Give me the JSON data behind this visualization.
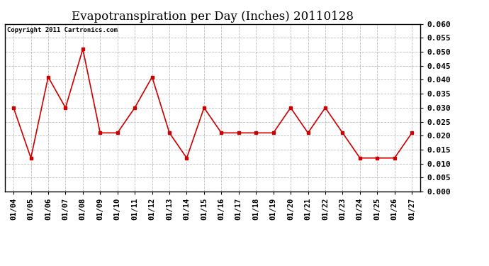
{
  "title": "Evapotranspiration per Day (Inches) 20110128",
  "copyright_text": "Copyright 2011 Cartronics.com",
  "x_labels": [
    "01/04",
    "01/05",
    "01/06",
    "01/07",
    "01/08",
    "01/09",
    "01/10",
    "01/11",
    "01/12",
    "01/13",
    "01/14",
    "01/15",
    "01/16",
    "01/17",
    "01/18",
    "01/19",
    "01/20",
    "01/21",
    "01/22",
    "01/23",
    "01/24",
    "01/25",
    "01/26",
    "01/27"
  ],
  "y_values": [
    0.03,
    0.012,
    0.041,
    0.03,
    0.051,
    0.021,
    0.021,
    0.03,
    0.041,
    0.021,
    0.012,
    0.03,
    0.021,
    0.021,
    0.021,
    0.021,
    0.03,
    0.021,
    0.03,
    0.021,
    0.012,
    0.012,
    0.012,
    0.021
  ],
  "line_color": "#cc0000",
  "marker": "s",
  "marker_size": 3,
  "ylim": [
    0.0,
    0.06
  ],
  "yticks": [
    0.0,
    0.005,
    0.01,
    0.015,
    0.02,
    0.025,
    0.03,
    0.035,
    0.04,
    0.045,
    0.05,
    0.055,
    0.06
  ],
  "background_color": "#ffffff",
  "grid_color": "#aaaaaa",
  "title_fontsize": 12,
  "copyright_fontsize": 6.5,
  "tick_fontsize": 7.5,
  "ytick_fontsize": 8
}
